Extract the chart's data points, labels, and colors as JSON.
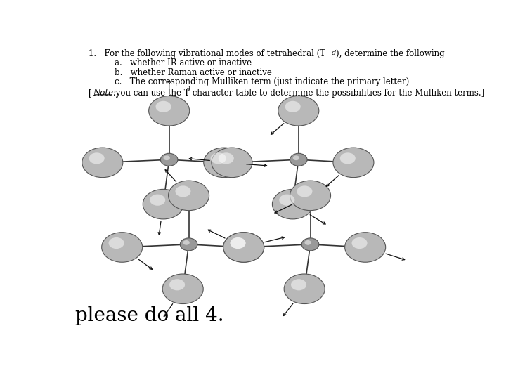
{
  "bg_color": "#ffffff",
  "bond_color": "#333333",
  "arrow_color": "#111111",
  "atom_color_outer": "#b8b8b8",
  "atom_color_center": "#999999",
  "line1": "1.   For the following vibrational modes of tetrahedral (T",
  "line1_sub": "d",
  "line1_end": "), determine the following",
  "line_a": "a.   whether IR active or inactive",
  "line_b": "b.   whether Raman active or inactive",
  "line_c": "c.   The corresponding Mulliken term (just indicate the primary letter)",
  "note_bracket": "[",
  "note_italic": "Note:",
  "note_rest": " you can use the T",
  "note_sub": "d",
  "note_end": " character table to determine the possibilities for the Mulliken terms.]",
  "bottom_text": "please do all 4."
}
